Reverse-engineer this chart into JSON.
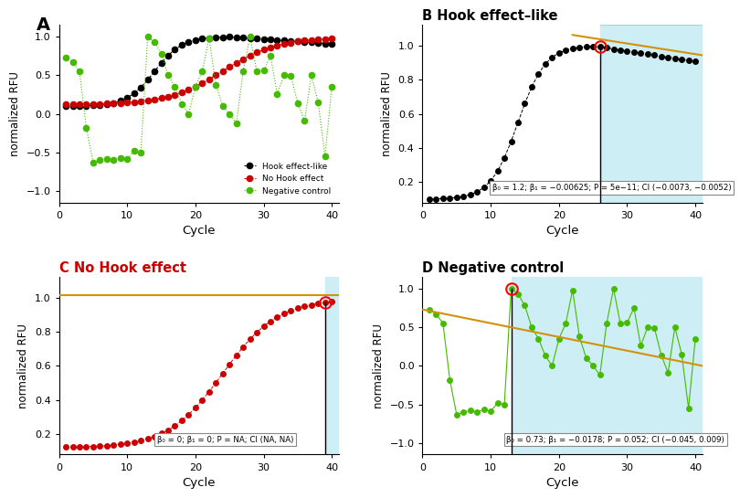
{
  "panel_A": {
    "title": "A",
    "hook_color": "black",
    "nohook_color": "#cc0000",
    "neg_color": "#44bb00",
    "ylim": [
      -1.15,
      1.15
    ],
    "xlim": [
      0,
      41
    ],
    "ylabel": "normalized RFU",
    "xlabel": "Cycle",
    "yticks": [
      -1.0,
      -0.5,
      0.0,
      0.5,
      1.0
    ],
    "xticks": [
      0,
      10,
      20,
      30,
      40
    ],
    "legend_labels": [
      "Hook effect-like",
      "No Hook effect",
      "Negative control"
    ]
  },
  "panel_B": {
    "title": "B Hook effect–like",
    "data_color": "black",
    "highlight_color": "#ceeef5",
    "regression_color": "#d4910a",
    "vline_x": 26,
    "annotation": "β₀ = 1.2; β₁ = −0.00625; P = 5e−11; CI (−0.0073, −0.0052)",
    "ylim": [
      0.08,
      1.12
    ],
    "xlim": [
      0,
      41
    ],
    "ylabel": "normalized RFU",
    "xlabel": "Cycle",
    "yticks": [
      0.2,
      0.4,
      0.6,
      0.8,
      1.0
    ],
    "xticks": [
      0,
      10,
      20,
      30,
      40
    ],
    "reg_b0": 1.2,
    "reg_b1": -0.00625
  },
  "panel_C": {
    "title": "C No Hook effect",
    "data_color": "#cc0000",
    "highlight_color": "#ceeef5",
    "regression_color": "#d4910a",
    "vline_x": 39,
    "annotation": "β₀ = 0; β₁ = 0; P = NA; CI (NA, NA)",
    "ylim": [
      0.08,
      1.12
    ],
    "xlim": [
      0,
      41
    ],
    "ylabel": "normalized RFU",
    "xlabel": "Cycle",
    "yticks": [
      0.2,
      0.4,
      0.6,
      0.8,
      1.0
    ],
    "xticks": [
      0,
      10,
      20,
      30,
      40
    ],
    "reg_level": 1.015
  },
  "panel_D": {
    "title": "D Negative control",
    "data_color": "#44bb00",
    "highlight_color": "#ceeef5",
    "regression_color": "#d4910a",
    "vline_x": 13,
    "annotation": "β₀ = 0.73; β₁ = −0.0178; P = 0.052; CI (−0.045, 0.009)",
    "ylim": [
      -1.15,
      1.15
    ],
    "xlim": [
      0,
      41
    ],
    "ylabel": "normalized RFU",
    "xlabel": "Cycle",
    "yticks": [
      -1.0,
      -0.5,
      0.0,
      0.5,
      1.0
    ],
    "xticks": [
      0,
      10,
      20,
      30,
      40
    ],
    "reg_b0": 0.73,
    "reg_b1": -0.0178
  }
}
